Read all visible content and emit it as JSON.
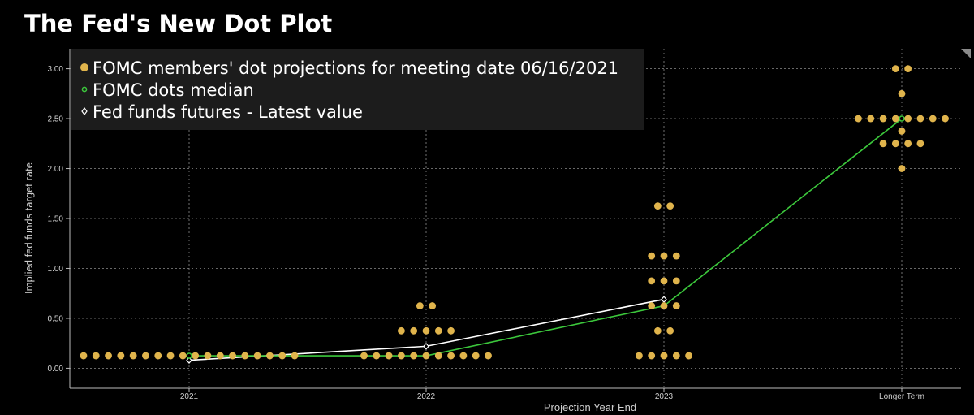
{
  "title": "The Fed's New Dot Plot",
  "chart_data": {
    "type": "scatter",
    "title": "The Fed's New Dot Plot",
    "xlabel": "Projection Year End",
    "ylabel": "Implied fed funds target rate",
    "categories": [
      "2021",
      "2022",
      "2023",
      "Longer Term"
    ],
    "ylim": [
      -0.2,
      3.2
    ],
    "yticks": [
      "0.00",
      "0.50",
      "1.00",
      "1.50",
      "2.00",
      "2.50",
      "3.00"
    ],
    "grid": true,
    "legend_position": "top-left",
    "legend": [
      "FOMC members' dot projections for meeting date 06/16/2021",
      "FOMC dots median",
      "Fed funds futures - Latest value"
    ],
    "dots": [
      {
        "category": "2021",
        "rate": 0.125,
        "count": 18
      },
      {
        "category": "2022",
        "rate": 0.625,
        "count": 2
      },
      {
        "category": "2022",
        "rate": 0.375,
        "count": 5
      },
      {
        "category": "2022",
        "rate": 0.125,
        "count": 11
      },
      {
        "category": "2023",
        "rate": 1.625,
        "count": 2
      },
      {
        "category": "2023",
        "rate": 1.125,
        "count": 3
      },
      {
        "category": "2023",
        "rate": 0.875,
        "count": 3
      },
      {
        "category": "2023",
        "rate": 0.625,
        "count": 3
      },
      {
        "category": "2023",
        "rate": 0.375,
        "count": 2
      },
      {
        "category": "2023",
        "rate": 0.125,
        "count": 5
      },
      {
        "category": "Longer Term",
        "rate": 3.0,
        "count": 2
      },
      {
        "category": "Longer Term",
        "rate": 2.75,
        "count": 1
      },
      {
        "category": "Longer Term",
        "rate": 2.5,
        "count": 8
      },
      {
        "category": "Longer Term",
        "rate": 2.375,
        "count": 1
      },
      {
        "category": "Longer Term",
        "rate": 2.25,
        "count": 4
      },
      {
        "category": "Longer Term",
        "rate": 2.0,
        "count": 1
      }
    ],
    "series": [
      {
        "name": "FOMC dots median",
        "values": [
          0.125,
          0.125,
          0.625,
          2.5
        ],
        "color": "#3cc83c"
      },
      {
        "name": "Fed funds futures - Latest value",
        "values": [
          0.08,
          0.22,
          0.69,
          null
        ],
        "color": "#ffffff"
      }
    ],
    "colors": {
      "dots": "#e0b44c",
      "median": "#3cc83c",
      "futures": "#ffffff",
      "grid": "#8a8a8a",
      "legend_bg": "#1c1c1c",
      "text": "#cfcfcf"
    }
  }
}
